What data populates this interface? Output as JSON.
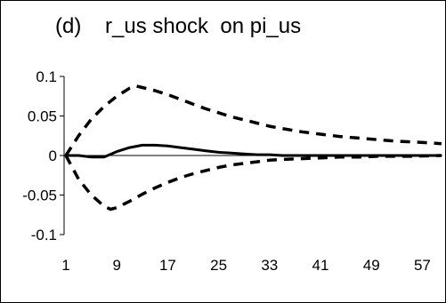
{
  "chart_data": {
    "type": "line",
    "title": "(d)    r_us shock  on pi_us",
    "xlabel": "",
    "ylabel": "",
    "x_ticks": [
      "1",
      "9",
      "17",
      "25",
      "33",
      "41",
      "49",
      "57"
    ],
    "y_ticks": [
      "0.1",
      "0.05",
      "0",
      "-0.05",
      "-0.1"
    ],
    "xlim": [
      1,
      60
    ],
    "ylim": [
      -0.1,
      0.1
    ],
    "grid": false,
    "legend": "none",
    "series": [
      {
        "role": "point estimate",
        "style": "solid",
        "x": [
          1,
          3,
          5,
          7,
          9,
          11,
          13,
          15,
          17,
          19,
          21,
          23,
          25,
          27,
          29,
          31,
          33,
          35,
          40,
          45,
          50,
          55,
          60
        ],
        "y": [
          0,
          0,
          -0.002,
          -0.002,
          0.005,
          0.01,
          0.013,
          0.013,
          0.012,
          0.01,
          0.008,
          0.006,
          0.004,
          0.003,
          0.002,
          0.001,
          0.001,
          0,
          0,
          0,
          0,
          0,
          0
        ]
      },
      {
        "role": "upper band",
        "style": "dashed",
        "x": [
          1,
          3,
          5,
          7,
          9,
          11,
          12,
          13,
          15,
          17,
          19,
          21,
          23,
          25,
          27,
          29,
          31,
          33,
          35,
          38,
          41,
          44,
          47,
          50,
          53,
          56,
          60
        ],
        "y": [
          0,
          0.025,
          0.046,
          0.062,
          0.075,
          0.085,
          0.088,
          0.086,
          0.082,
          0.077,
          0.071,
          0.065,
          0.059,
          0.054,
          0.049,
          0.045,
          0.041,
          0.037,
          0.034,
          0.03,
          0.027,
          0.024,
          0.022,
          0.02,
          0.018,
          0.017,
          0.015
        ]
      },
      {
        "role": "lower band",
        "style": "dashed",
        "x": [
          1,
          3,
          5,
          7,
          8,
          9,
          11,
          13,
          15,
          17,
          19,
          21,
          23,
          25,
          27,
          29,
          31,
          33,
          35,
          38,
          41,
          44,
          47,
          50,
          55,
          60
        ],
        "y": [
          0,
          -0.03,
          -0.05,
          -0.064,
          -0.068,
          -0.066,
          -0.058,
          -0.049,
          -0.041,
          -0.034,
          -0.028,
          -0.023,
          -0.019,
          -0.015,
          -0.012,
          -0.01,
          -0.008,
          -0.006,
          -0.005,
          -0.004,
          -0.003,
          -0.002,
          -0.002,
          -0.001,
          -0.001,
          0
        ]
      }
    ]
  }
}
